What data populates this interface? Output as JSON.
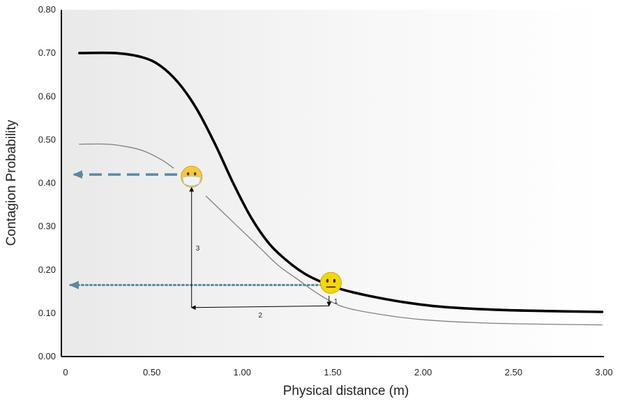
{
  "chart_data": {
    "type": "line",
    "title": "",
    "xlabel": "Physical distance (m)",
    "ylabel": "Contagion Probability",
    "xlim": [
      0,
      3.0
    ],
    "ylim": [
      0,
      0.8
    ],
    "x_ticks": [
      "0",
      "0.50",
      "1.00",
      "1.50",
      "2.00",
      "2.50",
      "3.00"
    ],
    "y_ticks": [
      "0.00",
      "0.10",
      "0.20",
      "0.30",
      "0.40",
      "0.50",
      "0.60",
      "0.70",
      "0.80"
    ],
    "grid": false,
    "legend": "none",
    "series": [
      {
        "style": "thick",
        "color": "#000000",
        "x": [
          0.1,
          0.3,
          0.45,
          0.55,
          0.65,
          0.75,
          0.85,
          0.95,
          1.05,
          1.15,
          1.25,
          1.35,
          1.45,
          1.55,
          1.7,
          1.9,
          2.1,
          2.4,
          2.7,
          2.99
        ],
        "y": [
          0.7,
          0.7,
          0.69,
          0.67,
          0.63,
          0.57,
          0.49,
          0.4,
          0.32,
          0.26,
          0.22,
          0.19,
          0.17,
          0.155,
          0.14,
          0.125,
          0.115,
          0.108,
          0.105,
          0.103
        ]
      },
      {
        "style": "thin",
        "color": "#808080",
        "segments": [
          {
            "x": [
              0.1,
              0.25,
              0.35,
              0.45,
              0.55,
              0.62
            ],
            "y": [
              0.49,
              0.49,
              0.485,
              0.475,
              0.455,
              0.435
            ]
          },
          {
            "x": [
              0.8,
              0.9,
              1.0,
              1.1,
              1.2,
              1.3,
              1.4,
              1.5,
              1.6,
              1.8,
              2.0,
              2.3,
              2.6,
              2.99
            ],
            "y": [
              0.37,
              0.33,
              0.29,
              0.25,
              0.21,
              0.18,
              0.15,
              0.125,
              0.11,
              0.095,
              0.085,
              0.078,
              0.075,
              0.073
            ]
          }
        ]
      }
    ],
    "annotations": {
      "masked_face": {
        "icon": "masked-face-icon",
        "x": 0.72,
        "y": 0.415,
        "color": "#f5c842"
      },
      "neutral_face": {
        "icon": "neutral-face-icon",
        "x": 1.49,
        "y": 0.17,
        "color": "#f5d800"
      },
      "dashed_arrow": {
        "from_x": 0.64,
        "to_x": 0.07,
        "y": 0.42,
        "color": "#5a8aa0"
      },
      "dotted_arrow": {
        "from_x": 1.44,
        "to_x": 0.05,
        "y": 0.165,
        "color": "#5a8aa0"
      },
      "steps": [
        {
          "label": "1",
          "from": [
            1.48,
            0.14
          ],
          "to": [
            1.48,
            0.117
          ]
        },
        {
          "label": "2",
          "from": [
            1.48,
            0.117
          ],
          "to": [
            0.72,
            0.113
          ]
        },
        {
          "label": "3",
          "from": [
            0.72,
            0.113
          ],
          "to": [
            0.72,
            0.39
          ]
        }
      ]
    }
  }
}
